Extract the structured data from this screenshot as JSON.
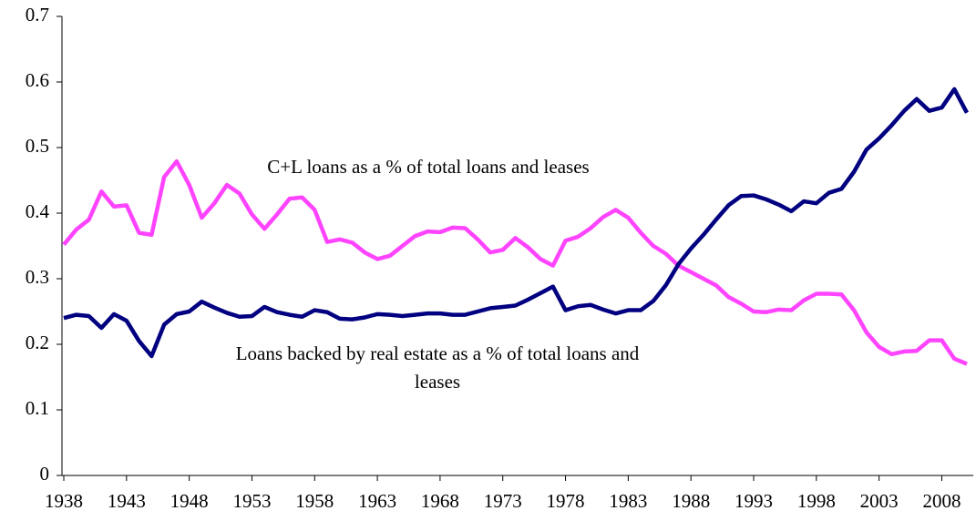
{
  "chart_data": {
    "type": "line",
    "x": [
      1938,
      1939,
      1940,
      1941,
      1942,
      1943,
      1944,
      1945,
      1946,
      1947,
      1948,
      1949,
      1950,
      1951,
      1952,
      1953,
      1954,
      1955,
      1956,
      1957,
      1958,
      1959,
      1960,
      1961,
      1962,
      1963,
      1964,
      1965,
      1966,
      1967,
      1968,
      1969,
      1970,
      1971,
      1972,
      1973,
      1974,
      1975,
      1976,
      1977,
      1978,
      1979,
      1980,
      1981,
      1982,
      1983,
      1984,
      1985,
      1986,
      1987,
      1988,
      1989,
      1990,
      1991,
      1992,
      1993,
      1994,
      1995,
      1996,
      1997,
      1998,
      1999,
      2000,
      2001,
      2002,
      2003,
      2004,
      2005,
      2006,
      2007,
      2008,
      2009,
      2010
    ],
    "series": [
      {
        "name": "C+L loans as a % of total loans and leases",
        "color": "#ff44ff",
        "values": [
          0.352,
          0.375,
          0.39,
          0.433,
          0.41,
          0.412,
          0.37,
          0.367,
          0.455,
          0.479,
          0.443,
          0.393,
          0.415,
          0.443,
          0.43,
          0.398,
          0.376,
          0.398,
          0.422,
          0.424,
          0.405,
          0.356,
          0.36,
          0.355,
          0.34,
          0.33,
          0.335,
          0.35,
          0.365,
          0.372,
          0.371,
          0.378,
          0.377,
          0.36,
          0.34,
          0.344,
          0.362,
          0.348,
          0.33,
          0.32,
          0.358,
          0.364,
          0.377,
          0.394,
          0.405,
          0.393,
          0.37,
          0.35,
          0.338,
          0.32,
          0.31,
          0.3,
          0.29,
          0.272,
          0.262,
          0.25,
          0.249,
          0.253,
          0.252,
          0.267,
          0.277,
          0.277,
          0.276,
          0.252,
          0.218,
          0.196,
          0.185,
          0.189,
          0.19,
          0.206,
          0.206,
          0.178,
          0.17
        ]
      },
      {
        "name": "Loans backed by real estate as a % of total loans and leases",
        "color": "#000080",
        "values": [
          0.24,
          0.245,
          0.243,
          0.225,
          0.246,
          0.236,
          0.205,
          0.182,
          0.23,
          0.246,
          0.25,
          0.265,
          0.256,
          0.248,
          0.242,
          0.243,
          0.257,
          0.249,
          0.245,
          0.242,
          0.252,
          0.249,
          0.239,
          0.238,
          0.241,
          0.246,
          0.245,
          0.243,
          0.245,
          0.247,
          0.247,
          0.245,
          0.245,
          0.25,
          0.255,
          0.257,
          0.259,
          0.268,
          0.278,
          0.288,
          0.252,
          0.258,
          0.26,
          0.253,
          0.247,
          0.252,
          0.252,
          0.266,
          0.29,
          0.322,
          0.346,
          0.367,
          0.39,
          0.412,
          0.426,
          0.427,
          0.421,
          0.413,
          0.403,
          0.418,
          0.415,
          0.431,
          0.437,
          0.463,
          0.497,
          0.514,
          0.534,
          0.556,
          0.574,
          0.556,
          0.561,
          0.589,
          0.553
        ]
      }
    ],
    "xlim": [
      1938,
      2010
    ],
    "xticks": [
      1938,
      1943,
      1948,
      1953,
      1958,
      1963,
      1968,
      1973,
      1978,
      1983,
      1988,
      1993,
      1998,
      2003,
      2008
    ],
    "ylim": [
      0,
      0.7
    ],
    "yticks": [
      0,
      0.1,
      0.2,
      0.3,
      0.4,
      0.5,
      0.6,
      0.7
    ],
    "grid": false
  }
}
